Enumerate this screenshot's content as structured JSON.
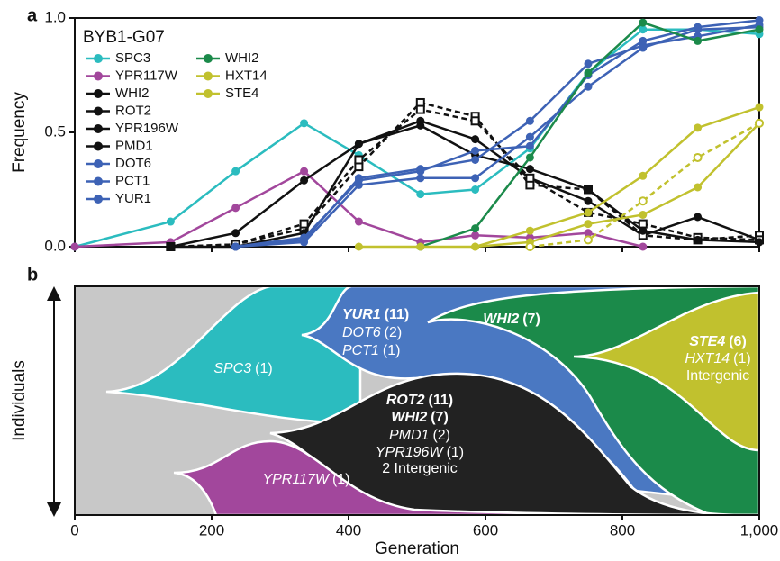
{
  "chart_data": [
    {
      "type": "line",
      "panel_label": "a",
      "title": "BYB1-G07",
      "y_label": "Frequency",
      "x": [
        0,
        140,
        235,
        335,
        415,
        505,
        585,
        665,
        750,
        830,
        910,
        1000
      ],
      "xlim": [
        0,
        1000
      ],
      "ylim": [
        0,
        1
      ],
      "xticks": [
        0,
        200,
        400,
        600,
        800,
        {
          "value": 1000,
          "label": "1,000"
        }
      ],
      "yticks": [
        {
          "value": 0,
          "label": "0.0"
        },
        {
          "value": 0.5,
          "label": "0.5"
        },
        {
          "value": 1,
          "label": "1.0"
        }
      ],
      "series": [
        {
          "name": "SPC3",
          "color": "#2bbcbf",
          "values": [
            0,
            0.11,
            0.33,
            0.54,
            0.4,
            0.23,
            0.25,
            0.43,
            0.76,
            0.95,
            0.95,
            0.93
          ]
        },
        {
          "name": "YPR117W",
          "color": "#a2479c",
          "values": [
            0,
            0.02,
            0.17,
            0.33,
            0.11,
            0.02,
            0.05,
            0.04,
            0.06,
            0,
            null,
            null
          ]
        },
        {
          "name": "WHI2",
          "color": "#111111",
          "values": [
            null,
            0,
            0.06,
            0.29,
            0.45,
            0.55,
            0.47,
            0.3,
            0.2,
            0.05,
            0.13,
            0.03
          ]
        },
        {
          "name": "ROT2",
          "color": "#111111",
          "dashed": true,
          "marker": "square-open",
          "values": [
            null,
            0,
            0.01,
            0.08,
            0.35,
            0.63,
            0.57,
            0.27,
            0.25,
            0.05,
            0.03,
            0.05
          ]
        },
        {
          "name": "YPR196W",
          "color": "#111111",
          "dashed": true,
          "marker": "square-open",
          "values": [
            null,
            0,
            0.01,
            0.1,
            0.38,
            0.6,
            0.55,
            0.3,
            0.15,
            0.1,
            0.04,
            0.03
          ]
        },
        {
          "name": "PMD1",
          "color": "#111111",
          "values": [
            null,
            0,
            0,
            0.06,
            0.45,
            0.53,
            0.4,
            0.34,
            0.25,
            0.07,
            0.03,
            0.02
          ]
        },
        {
          "name": "DOT6",
          "color": "#3d62b5",
          "values": [
            null,
            null,
            0,
            0.03,
            0.3,
            0.34,
            0.38,
            0.55,
            0.8,
            0.88,
            0.92,
            0.97
          ]
        },
        {
          "name": "PCT1",
          "color": "#3d62b5",
          "values": [
            null,
            null,
            0,
            0.02,
            0.27,
            0.3,
            0.3,
            0.48,
            0.7,
            0.87,
            0.95,
            0.96
          ]
        },
        {
          "name": "YUR1",
          "color": "#3d62b5",
          "values": [
            null,
            null,
            0,
            0.04,
            0.29,
            0.33,
            0.42,
            0.44,
            0.75,
            0.9,
            0.96,
            0.99
          ]
        },
        {
          "name": "WHI2",
          "color": "#1b8a4a",
          "values": [
            null,
            null,
            null,
            null,
            null,
            0,
            0.08,
            0.39,
            0.76,
            0.98,
            0.9,
            0.95
          ]
        },
        {
          "name": "HXT14",
          "color": "#c1c12e",
          "values": [
            null,
            null,
            null,
            null,
            0,
            0,
            0,
            0.07,
            0.15,
            0.31,
            0.52,
            0.61
          ]
        },
        {
          "name": "STE4",
          "color": "#c1c12e",
          "values": [
            null,
            null,
            null,
            null,
            null,
            null,
            0,
            0.02,
            0.1,
            0.14,
            0.26,
            0.54
          ]
        },
        {
          "color": "#c1c12e",
          "dashed": true,
          "marker": "circle-open",
          "values": [
            null,
            null,
            null,
            null,
            null,
            null,
            null,
            0,
            0.03,
            0.2,
            0.39,
            0.54
          ]
        }
      ]
    },
    {
      "type": "muller",
      "panel_label": "b",
      "y_label": "Individuals",
      "x_label": "Generation",
      "labels": {
        "spc3": {
          "gene": "SPC3",
          "count": "(1)"
        },
        "yur1": {
          "gene": "YUR1",
          "count": "(11)"
        },
        "dot6": {
          "gene": "DOT6",
          "count": "(2)"
        },
        "pct1": {
          "gene": "PCT1",
          "count": "(1)"
        },
        "whi2_green": {
          "gene": "WHI2",
          "count": "(7)"
        },
        "ste4": {
          "gene": "STE4",
          "count": "(6)"
        },
        "hxt14": {
          "gene": "HXT14",
          "count": "(1)"
        },
        "intergenic_olive": "Intergenic",
        "rot2": {
          "gene": "ROT2",
          "count": "(11)"
        },
        "whi2_black": {
          "gene": "WHI2",
          "count": "(7)"
        },
        "pmd1": {
          "gene": "PMD1",
          "count": "(2)"
        },
        "ypr196w": {
          "gene": "YPR196W",
          "count": "(1)"
        },
        "intergenic_black": "2 Intergenic",
        "ypr117w": {
          "gene": "YPR117W",
          "count": "(1)"
        }
      }
    }
  ]
}
